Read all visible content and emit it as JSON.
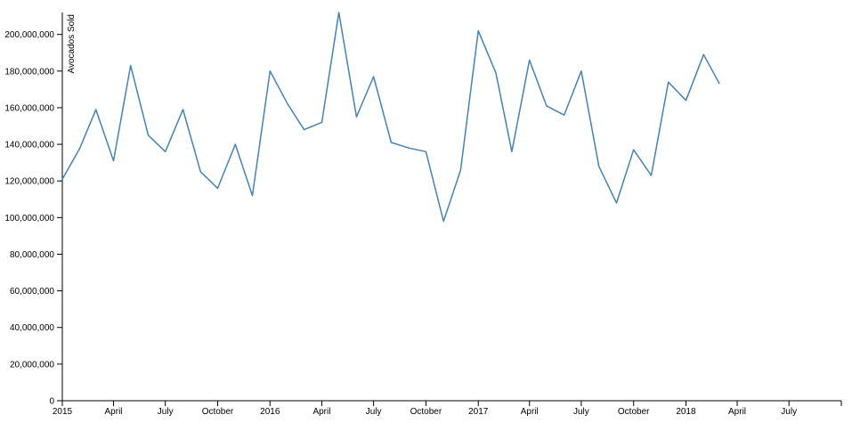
{
  "chart_data": {
    "type": "line",
    "ylabel": "Avocados Sold",
    "xlabel": "",
    "title": "",
    "ylim": [
      0,
      212000000
    ],
    "xlim": [
      "2015-01-01",
      "2018-10-01"
    ],
    "y_tick_values": [
      0,
      20000000,
      40000000,
      60000000,
      80000000,
      100000000,
      120000000,
      140000000,
      160000000,
      180000000,
      200000000
    ],
    "y_tick_labels": [
      "0",
      "20,000,000",
      "40,000,000",
      "60,000,000",
      "80,000,000",
      "100,000,000",
      "120,000,000",
      "140,000,000",
      "160,000,000",
      "180,000,000",
      "200,000,000"
    ],
    "x_ticks": [
      {
        "date": "2015-01-01",
        "label": "2015"
      },
      {
        "date": "2015-04-01",
        "label": "April"
      },
      {
        "date": "2015-07-01",
        "label": "July"
      },
      {
        "date": "2015-10-01",
        "label": "October"
      },
      {
        "date": "2016-01-01",
        "label": "2016"
      },
      {
        "date": "2016-04-01",
        "label": "April"
      },
      {
        "date": "2016-07-01",
        "label": "July"
      },
      {
        "date": "2016-10-01",
        "label": "October"
      },
      {
        "date": "2017-01-01",
        "label": "2017"
      },
      {
        "date": "2017-04-01",
        "label": "April"
      },
      {
        "date": "2017-07-01",
        "label": "July"
      },
      {
        "date": "2017-10-01",
        "label": "October"
      },
      {
        "date": "2018-01-01",
        "label": "2018"
      },
      {
        "date": "2018-04-01",
        "label": "April"
      },
      {
        "date": "2018-07-01",
        "label": "July"
      }
    ],
    "x": [
      "2015-01-01",
      "2015-02-01",
      "2015-03-01",
      "2015-04-01",
      "2015-05-01",
      "2015-06-01",
      "2015-07-01",
      "2015-08-01",
      "2015-09-01",
      "2015-10-01",
      "2015-11-01",
      "2015-12-01",
      "2016-01-01",
      "2016-02-01",
      "2016-03-01",
      "2016-04-01",
      "2016-05-01",
      "2016-06-01",
      "2016-07-01",
      "2016-08-01",
      "2016-09-01",
      "2016-10-01",
      "2016-11-01",
      "2016-12-01",
      "2017-01-01",
      "2017-02-01",
      "2017-03-01",
      "2017-04-01",
      "2017-05-01",
      "2017-06-01",
      "2017-07-01",
      "2017-08-01",
      "2017-09-01",
      "2017-10-01",
      "2017-11-01",
      "2017-12-01",
      "2018-01-01",
      "2018-02-01",
      "2018-03-01"
    ],
    "series": [
      {
        "color": "#4682b4",
        "values": [
          121000000,
          138000000,
          159000000,
          131000000,
          183000000,
          145000000,
          136000000,
          159000000,
          125000000,
          116000000,
          140000000,
          112000000,
          180000000,
          162000000,
          148000000,
          152000000,
          212000000,
          155000000,
          177000000,
          141000000,
          138000000,
          136000000,
          98000000,
          126000000,
          202000000,
          179000000,
          136000000,
          186000000,
          161000000,
          156000000,
          180000000,
          128000000,
          108000000,
          137000000,
          123000000,
          174000000,
          164000000,
          189000000,
          173000000
        ]
      }
    ],
    "grid": false,
    "legend": "none"
  }
}
